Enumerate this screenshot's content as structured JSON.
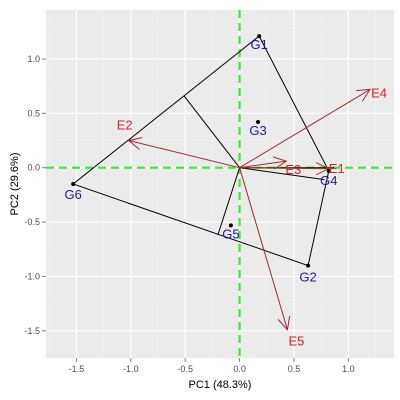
{
  "chart_data": {
    "type": "scatter",
    "xlabel": "PC1 (48.3%)",
    "ylabel": "PC2 (29.6%)",
    "xlim": [
      -1.78,
      1.42
    ],
    "ylim": [
      -1.75,
      1.45
    ],
    "xticks": [
      -1.5,
      -1.0,
      -0.5,
      0.0,
      0.5,
      1.0
    ],
    "xtick_labels": [
      "-1.5",
      "-1.0",
      "-0.5",
      "0.0",
      "0.5",
      "1.0"
    ],
    "yticks": [
      -1.5,
      -1.0,
      -0.5,
      0.0,
      0.5,
      1.0
    ],
    "ytick_labels": [
      "-1.5",
      "-1.0",
      "-0.5",
      "0.0",
      "0.5",
      "1.0"
    ],
    "grid": true,
    "reference_lines": {
      "x": 0,
      "y": 0,
      "color": "#33ee33",
      "style": "dashed"
    },
    "genotypes": {
      "color": "#1a1aaa",
      "points": [
        {
          "name": "G1",
          "x": 0.18,
          "y": 1.21
        },
        {
          "name": "G2",
          "x": 0.63,
          "y": -0.9
        },
        {
          "name": "G3",
          "x": 0.17,
          "y": 0.42
        },
        {
          "name": "G4",
          "x": 0.82,
          "y": -0.03
        },
        {
          "name": "G5",
          "x": -0.08,
          "y": -0.53
        },
        {
          "name": "G6",
          "x": -1.53,
          "y": -0.15
        }
      ]
    },
    "environments": {
      "color": "#a52a2a",
      "label_color": "#dd2222",
      "vectors": [
        {
          "name": "E1",
          "x": 0.82,
          "y": -0.01
        },
        {
          "name": "E2",
          "x": -1.02,
          "y": 0.25
        },
        {
          "name": "E3",
          "x": 0.43,
          "y": 0.06
        },
        {
          "name": "E4",
          "x": 1.2,
          "y": 0.72
        },
        {
          "name": "E5",
          "x": 0.44,
          "y": -1.49
        }
      ]
    },
    "hull": [
      "G1",
      "G4",
      "G2",
      "G6"
    ],
    "hull_color": "#000000",
    "sector_lines": [
      {
        "x": -0.51,
        "y": 0.66
      },
      {
        "x": 0.87,
        "y": 0.0
      },
      {
        "x": 0.78,
        "y": -0.11
      },
      {
        "x": -0.2,
        "y": -0.62
      }
    ]
  }
}
